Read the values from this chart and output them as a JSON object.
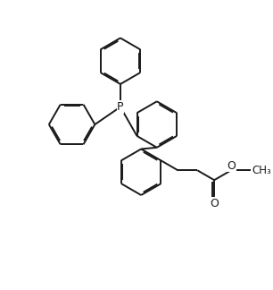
{
  "background": "#ffffff",
  "line_color": "#1a1a1a",
  "line_width": 1.4,
  "dbo": 0.055,
  "figsize": [
    3.06,
    3.24
  ],
  "dpi": 100,
  "xlim": [
    0,
    10
  ],
  "ylim": [
    0,
    10.6
  ]
}
